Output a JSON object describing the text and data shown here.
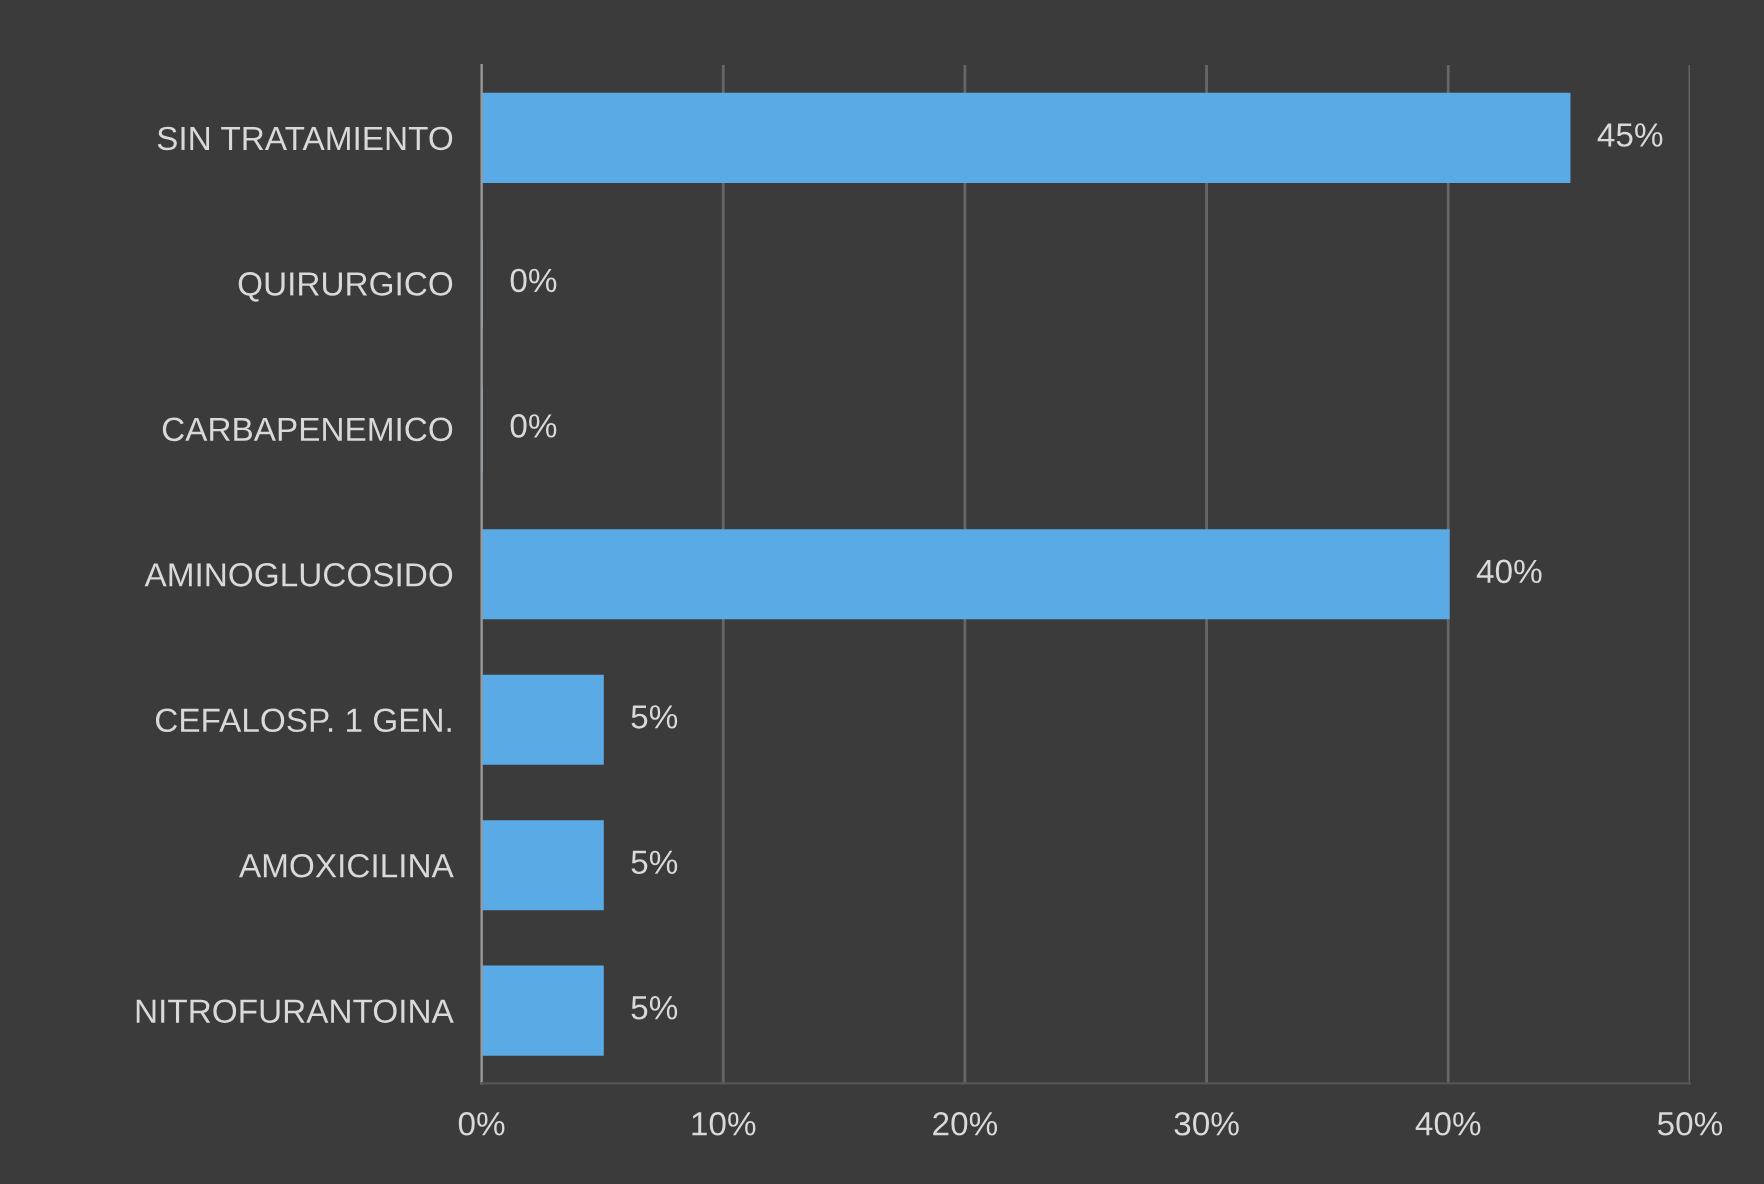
{
  "chart_data": {
    "type": "bar",
    "orientation": "horizontal",
    "categories": [
      "SIN TRATAMIENTO",
      "QUIRURGICO",
      "CARBAPENEMICO",
      "AMINOGLUCOSIDO",
      "CEFALOSP. 1 GEN.",
      "AMOXICILINA",
      "NITROFURANTOINA"
    ],
    "values": [
      45,
      0,
      0,
      40,
      5,
      5,
      5
    ],
    "value_labels": [
      "45%",
      "0%",
      "0%",
      "40%",
      "5%",
      "5%",
      "5%"
    ],
    "color": "#5aaae6",
    "xlim": [
      0,
      50
    ],
    "xticks": [
      {
        "value": 0,
        "label": "0%"
      },
      {
        "value": 10,
        "label": "10%"
      },
      {
        "value": 20,
        "label": "20%"
      },
      {
        "value": 30,
        "label": "30%"
      },
      {
        "value": 40,
        "label": "40%"
      },
      {
        "value": 50,
        "label": "50%"
      }
    ],
    "grid": "x",
    "legend": false
  }
}
